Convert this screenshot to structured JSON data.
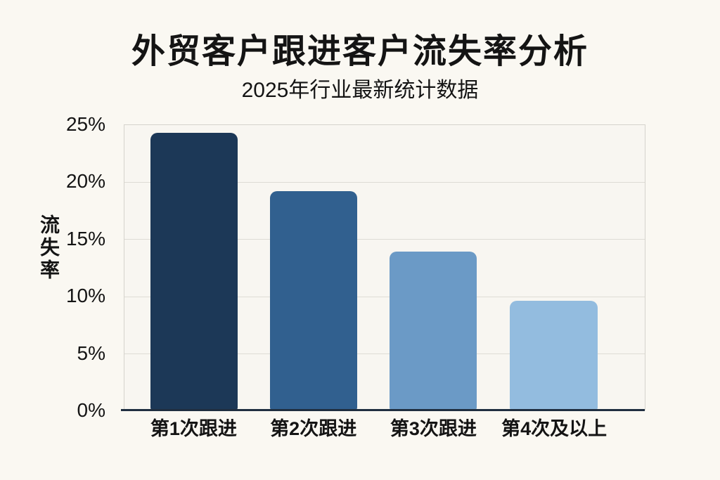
{
  "chart_data": {
    "type": "bar",
    "title": "外贸客户跟进客户流失率分析",
    "subtitle": "2025年行业最新统计数据",
    "ylabel": "流失率",
    "xlabel": "",
    "categories": [
      "第1次跟进",
      "第2次跟进",
      "第3次跟进",
      "第4次及以上"
    ],
    "values": [
      24.3,
      19.2,
      13.9,
      9.6
    ],
    "unit": "%",
    "ylim": [
      0,
      25
    ],
    "ytick_step": 5,
    "yticks": [
      "0%",
      "5%",
      "10%",
      "15%",
      "20%",
      "25%"
    ],
    "grid": true,
    "legend": false,
    "bar_colors": [
      "#1C3857",
      "#31608F",
      "#6B9AC6",
      "#93BCDF"
    ],
    "colors": {
      "page_background": "#FAF8F2",
      "plot_background": "#F8F6F1",
      "gridline": "#DEDCD5",
      "plot_border": "#D5D3CC",
      "axis_line": "#1F2E40",
      "text": "#141414"
    }
  }
}
